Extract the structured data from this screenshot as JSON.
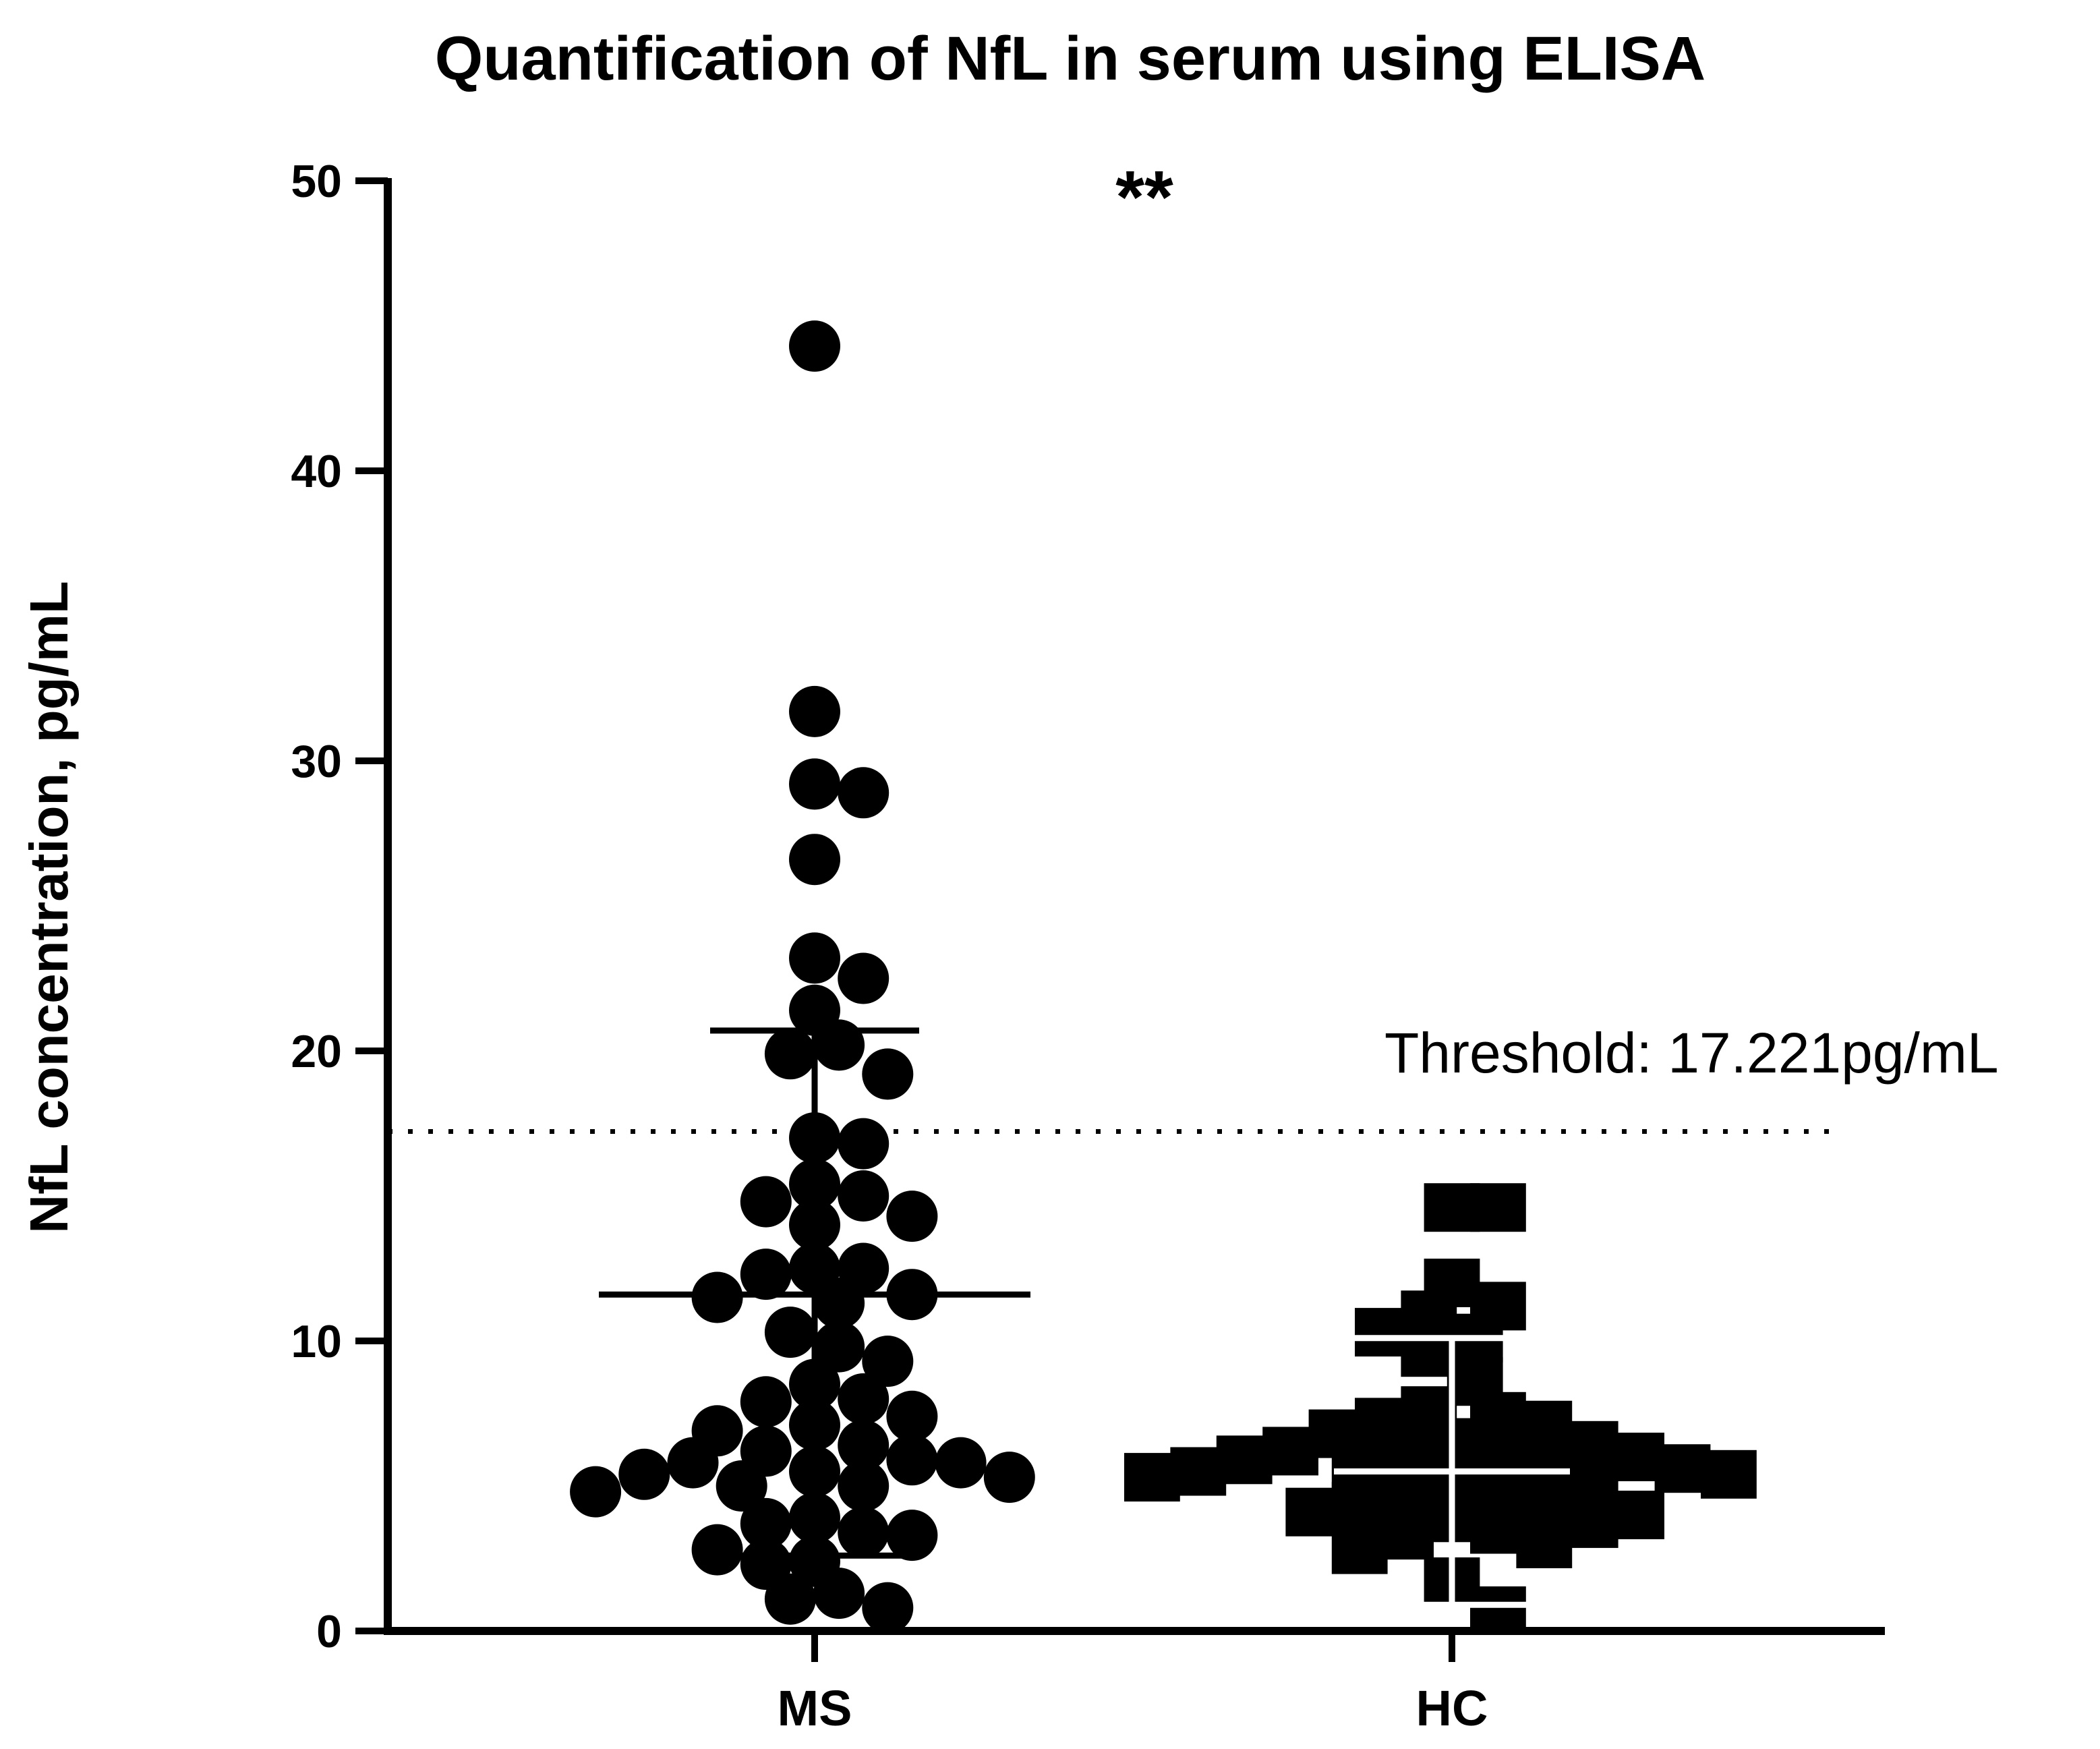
{
  "chart_data": {
    "type": "scatter",
    "title": "Quantification of NfL in serum using ELISA",
    "ylabel": "NfL concentration, pg/mL",
    "xlabel": "",
    "ylim": [
      0,
      50
    ],
    "yticks": [
      "0",
      "10",
      "20",
      "30",
      "40",
      "50"
    ],
    "categories": [
      "MS",
      "HC"
    ],
    "significance": "**",
    "threshold": {
      "value": 17.221,
      "label": "Threshold: 17.221pg/mL",
      "style": "dotted"
    },
    "series": [
      {
        "category": "MS",
        "marker": "circle",
        "mean": 11.6,
        "sd_upper": 20.7,
        "sd_lower": 2.6,
        "values": [
          44.3,
          31.7,
          29.2,
          28.9,
          26.6,
          23.2,
          22.5,
          21.4,
          20.2,
          19.9,
          19.2,
          17.0,
          16.8,
          15.4,
          15.0,
          14.8,
          14.3,
          14.0,
          12.5,
          12.5,
          12.3,
          11.6,
          11.5,
          11.3,
          10.3,
          9.8,
          9.3,
          8.5,
          8.0,
          7.9,
          7.4,
          7.1,
          6.9,
          6.4,
          6.2,
          5.9,
          5.8,
          5.8,
          5.5,
          5.4,
          5.3,
          5.0,
          5.0,
          4.8,
          3.9,
          3.7,
          3.4,
          3.3,
          2.8,
          2.4,
          2.3,
          1.3,
          1.1,
          0.8
        ]
      },
      {
        "category": "HC",
        "marker": "square",
        "mean": 5.5,
        "sd_upper": 10.1,
        "sd_lower": 0.9,
        "values": [
          14.6,
          14.6,
          12.0,
          11.2,
          10.9,
          10.3,
          10.1,
          9.6,
          8.6,
          7.6,
          7.4,
          7.2,
          7.1,
          6.8,
          6.5,
          6.4,
          6.2,
          6.1,
          6.0,
          6.0,
          5.9,
          5.8,
          5.7,
          5.6,
          5.5,
          5.4,
          5.3,
          5.2,
          5.0,
          4.8,
          4.6,
          4.5,
          4.3,
          4.1,
          4.0,
          3.9,
          3.7,
          3.5,
          3.3,
          3.0,
          2.8,
          1.7,
          0.7
        ]
      }
    ]
  }
}
